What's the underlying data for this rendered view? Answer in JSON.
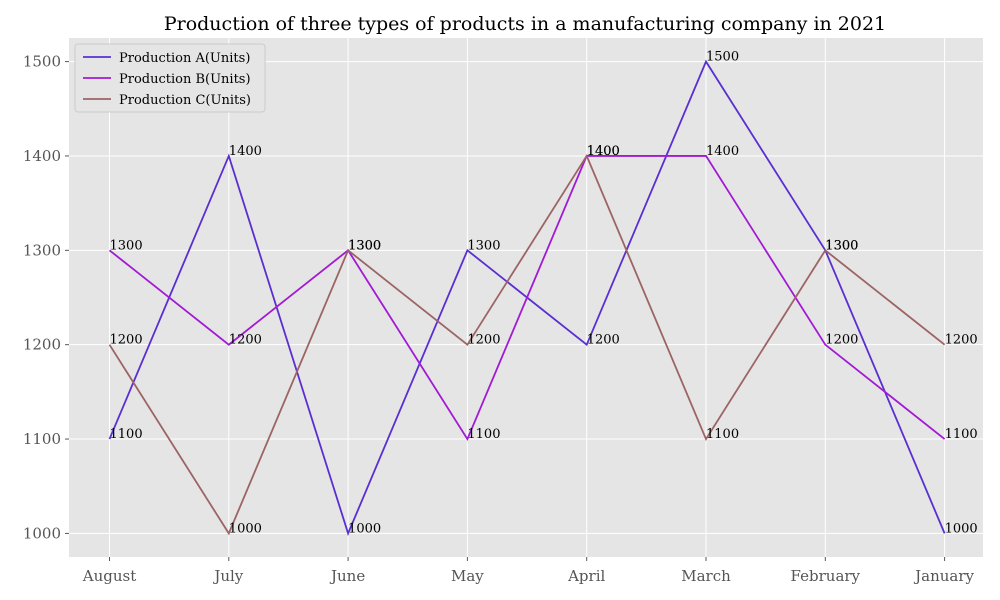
{
  "chart_data": {
    "type": "line",
    "title": "Production of three types of products in a manufacturing company in 2021",
    "xlabel": "",
    "ylabel": "",
    "categories": [
      "August",
      "July",
      "June",
      "May",
      "April",
      "March",
      "February",
      "January"
    ],
    "ylim": [
      975,
      1525
    ],
    "yticks": [
      1000,
      1100,
      1200,
      1300,
      1400,
      1500
    ],
    "grid": true,
    "legend_position": "top-left",
    "background": "#e5e5e5",
    "series": [
      {
        "name": "Production A(Units)",
        "color": "#5a2fd1",
        "values": [
          1100,
          1400,
          1000,
          1300,
          1200,
          1500,
          1300,
          1000
        ]
      },
      {
        "name": "Production B(Units)",
        "color": "#a21ad4",
        "values": [
          1300,
          1200,
          1300,
          1100,
          1400,
          1400,
          1200,
          1100
        ]
      },
      {
        "name": "Production C(Units)",
        "color": "#9c6464",
        "values": [
          1200,
          1000,
          1300,
          1200,
          1400,
          1100,
          1300,
          1200
        ]
      }
    ]
  }
}
